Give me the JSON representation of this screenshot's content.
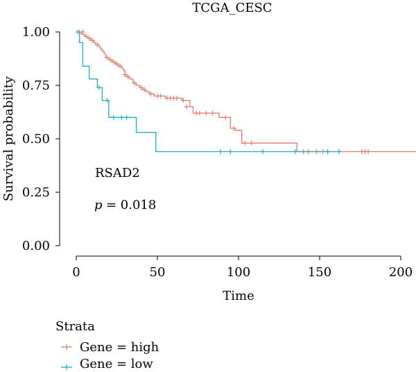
{
  "chart_data": {
    "type": "line",
    "subtype": "kaplan-meier",
    "title": "TCGA_CESC",
    "xlabel": "Time",
    "ylabel": "Survival probability",
    "xlim": [
      -8,
      210
    ],
    "ylim": [
      0,
      1.0
    ],
    "xticks": [
      "0",
      "50",
      "100",
      "150",
      "200"
    ],
    "yticks": [
      "0.00",
      "0.25",
      "0.50",
      "0.75",
      "1.00"
    ],
    "grid": false,
    "annotation_gene": "RSAD2",
    "annotation_p_symbol": "p",
    "annotation_p_value": "= 0.018",
    "legend": {
      "title": "Strata",
      "position": "bottom-left",
      "entries": [
        {
          "label": "Gene = high",
          "color": "#E8776E"
        },
        {
          "label": "Gene = low",
          "color": "#17B3BF"
        }
      ]
    },
    "series": [
      {
        "name": "Gene = high",
        "color": "#E8776E",
        "steps": [
          [
            0,
            1.0
          ],
          [
            3,
            0.99
          ],
          [
            5,
            0.98
          ],
          [
            7,
            0.97
          ],
          [
            9,
            0.96
          ],
          [
            11,
            0.95
          ],
          [
            12,
            0.94
          ],
          [
            14,
            0.93
          ],
          [
            15,
            0.92
          ],
          [
            16,
            0.91
          ],
          [
            17,
            0.9
          ],
          [
            18,
            0.88
          ],
          [
            20,
            0.87
          ],
          [
            22,
            0.86
          ],
          [
            24,
            0.85
          ],
          [
            26,
            0.84
          ],
          [
            28,
            0.83
          ],
          [
            29,
            0.82
          ],
          [
            30,
            0.8
          ],
          [
            31,
            0.79
          ],
          [
            33,
            0.78
          ],
          [
            35,
            0.76
          ],
          [
            37,
            0.75
          ],
          [
            39,
            0.74
          ],
          [
            41,
            0.73
          ],
          [
            43,
            0.72
          ],
          [
            45,
            0.71
          ],
          [
            48,
            0.7
          ],
          [
            55,
            0.69
          ],
          [
            65,
            0.68
          ],
          [
            70,
            0.65
          ],
          [
            72,
            0.62
          ],
          [
            88,
            0.6
          ],
          [
            95,
            0.55
          ],
          [
            98,
            0.54
          ],
          [
            102,
            0.48
          ],
          [
            136,
            0.44
          ],
          [
            210,
            0.44
          ]
        ],
        "censored": [
          [
            2,
            1.0
          ],
          [
            4,
            1.0
          ],
          [
            6,
            0.98
          ],
          [
            8,
            0.97
          ],
          [
            10,
            0.96
          ],
          [
            13,
            0.94
          ],
          [
            19,
            0.88
          ],
          [
            21,
            0.87
          ],
          [
            23,
            0.86
          ],
          [
            25,
            0.85
          ],
          [
            27,
            0.84
          ],
          [
            30,
            0.8
          ],
          [
            32,
            0.79
          ],
          [
            36,
            0.76
          ],
          [
            40,
            0.74
          ],
          [
            42,
            0.73
          ],
          [
            46,
            0.71
          ],
          [
            50,
            0.7
          ],
          [
            52,
            0.7
          ],
          [
            56,
            0.69
          ],
          [
            58,
            0.69
          ],
          [
            60,
            0.69
          ],
          [
            62,
            0.69
          ],
          [
            66,
            0.68
          ],
          [
            68,
            0.65
          ],
          [
            74,
            0.62
          ],
          [
            76,
            0.62
          ],
          [
            80,
            0.62
          ],
          [
            84,
            0.62
          ],
          [
            92,
            0.6
          ],
          [
            97,
            0.55
          ],
          [
            104,
            0.48
          ],
          [
            108,
            0.48
          ],
          [
            140,
            0.44
          ],
          [
            143,
            0.44
          ],
          [
            148,
            0.44
          ],
          [
            152,
            0.44
          ],
          [
            155,
            0.44
          ],
          [
            162,
            0.44
          ],
          [
            176,
            0.44
          ],
          [
            178,
            0.44
          ],
          [
            180,
            0.44
          ]
        ]
      },
      {
        "name": "Gene = low",
        "color": "#17B3BF",
        "steps": [
          [
            0,
            1.0
          ],
          [
            2,
            0.95
          ],
          [
            4,
            0.84
          ],
          [
            8,
            0.78
          ],
          [
            13,
            0.74
          ],
          [
            16,
            0.68
          ],
          [
            20,
            0.6
          ],
          [
            37,
            0.53
          ],
          [
            49,
            0.44
          ],
          [
            163,
            0.44
          ]
        ],
        "censored": [
          [
            1,
            1.0
          ],
          [
            14,
            0.74
          ],
          [
            19,
            0.68
          ],
          [
            23,
            0.6
          ],
          [
            28,
            0.6
          ],
          [
            31,
            0.6
          ],
          [
            89,
            0.44
          ],
          [
            95,
            0.44
          ],
          [
            115,
            0.44
          ],
          [
            135,
            0.44
          ],
          [
            155,
            0.44
          ],
          [
            162,
            0.44
          ]
        ]
      }
    ]
  }
}
